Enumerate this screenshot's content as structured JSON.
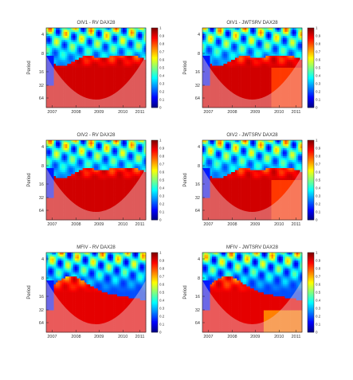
{
  "figure": {
    "panels": [
      {
        "title": "OIV1 - RV DAX28",
        "row": 0,
        "col": 0,
        "blob": 0
      },
      {
        "title": "OIV1 - JWTSRV DAX28",
        "row": 0,
        "col": 1,
        "blob": 1
      },
      {
        "title": "OIV2 - RV DAX28",
        "row": 1,
        "col": 0,
        "blob": 0
      },
      {
        "title": "OIV2 - JWTSRV DAX28",
        "row": 1,
        "col": 1,
        "blob": 1
      },
      {
        "title": "MFIV - RV DAX28",
        "row": 2,
        "col": 0,
        "blob": 2
      },
      {
        "title": "MFIV - JWTSRV DAX28",
        "row": 2,
        "col": 1,
        "blob": 3
      }
    ],
    "colors": {
      "low": "#00008f",
      "high": "#800000",
      "cone_tint": "#f0c8c8"
    }
  },
  "chart_data": {
    "type": "heatmap",
    "subtype": "wavelet coherence (6 panels)",
    "ylabel": "Period",
    "x_ticks": [
      "2007",
      "2008",
      "2009",
      "2010",
      "2011"
    ],
    "y_ticks": [
      "4",
      "8",
      "16",
      "32",
      "64"
    ],
    "y_scale": "log2",
    "colorbar": {
      "ticks": [
        "0",
        "0.1",
        "0.2",
        "0.3",
        "0.4",
        "0.5",
        "0.6",
        "0.7",
        "0.8",
        "0.9",
        "1"
      ],
      "range": [
        0,
        1
      ]
    }
  }
}
